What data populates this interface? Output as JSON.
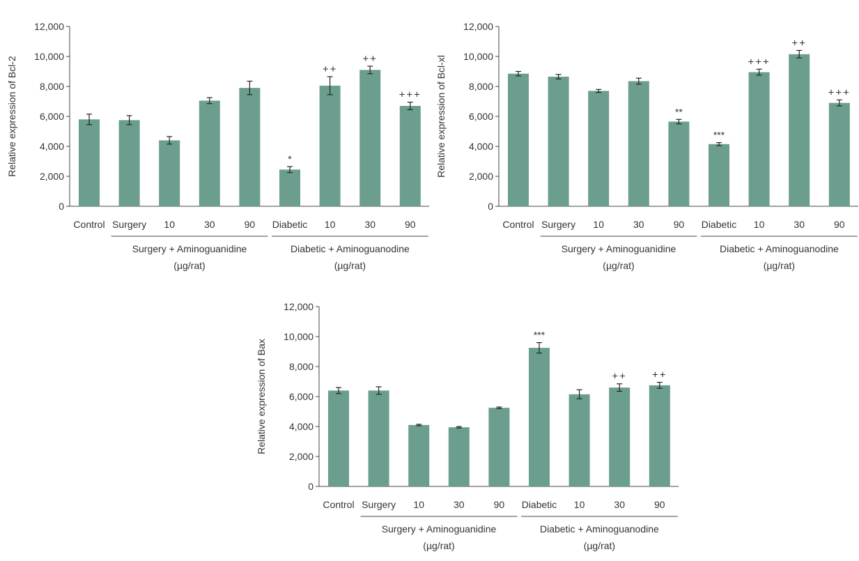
{
  "style": {
    "bar_color": "#6b9e8e",
    "axis_color": "#444444",
    "text_color": "#333333"
  },
  "group_labels": {
    "surgery_line1": "Surgery + Aminoguanidine",
    "diabetic_line1": "Diabetic + Aminoguanodine",
    "unit": "(µg/rat)"
  },
  "chart_data": [
    {
      "type": "bar",
      "ylabel": "Relative expression of Bcl-2",
      "ylim": [
        0,
        12000
      ],
      "yticks": [
        0,
        2000,
        4000,
        6000,
        8000,
        10000,
        12000
      ],
      "ytick_labels": [
        "0",
        "2,000",
        "4,000",
        "6,000",
        "8,000",
        "10,000",
        "12,000"
      ],
      "categories": [
        "Control",
        "Surgery",
        "10",
        "30",
        "90",
        "Diabetic",
        "10",
        "30",
        "90"
      ],
      "values": [
        5800,
        5750,
        4400,
        7050,
        7900,
        2450,
        8050,
        9100,
        6700
      ],
      "errors": [
        350,
        300,
        250,
        200,
        450,
        200,
        600,
        250,
        250
      ],
      "annotations": [
        "",
        "",
        "",
        "",
        "",
        "*",
        "++",
        "++",
        "+++"
      ]
    },
    {
      "type": "bar",
      "ylabel": "Relative expression of Bcl-xl",
      "ylim": [
        0,
        12000
      ],
      "yticks": [
        0,
        2000,
        4000,
        6000,
        8000,
        10000,
        12000
      ],
      "ytick_labels": [
        "0",
        "2,000",
        "4,000",
        "6,000",
        "8,000",
        "10,000",
        "12,000"
      ],
      "categories": [
        "Control",
        "Surgery",
        "10",
        "30",
        "90",
        "Diabetic",
        "10",
        "30",
        "90"
      ],
      "values": [
        8850,
        8650,
        7700,
        8350,
        5650,
        4150,
        8950,
        10150,
        6900
      ],
      "errors": [
        150,
        150,
        100,
        200,
        150,
        100,
        200,
        250,
        200
      ],
      "annotations": [
        "",
        "",
        "",
        "",
        "**",
        "***",
        "+++",
        "++",
        "+++"
      ]
    },
    {
      "type": "bar",
      "ylabel": "Relative expression of Bax",
      "ylim": [
        0,
        12000
      ],
      "yticks": [
        0,
        2000,
        4000,
        6000,
        8000,
        10000,
        12000
      ],
      "ytick_labels": [
        "0",
        "2,000",
        "4,000",
        "6,000",
        "8,000",
        "10,000",
        "12,000"
      ],
      "categories": [
        "Control",
        "Surgery",
        "10",
        "30",
        "90",
        "Diabetic",
        "10",
        "30",
        "90"
      ],
      "values": [
        6400,
        6400,
        4100,
        3950,
        5250,
        9250,
        6150,
        6600,
        6750
      ],
      "errors": [
        200,
        250,
        50,
        50,
        50,
        350,
        300,
        250,
        200
      ],
      "annotations": [
        "",
        "",
        "",
        "",
        "",
        "***",
        "",
        "++",
        "++"
      ]
    }
  ]
}
